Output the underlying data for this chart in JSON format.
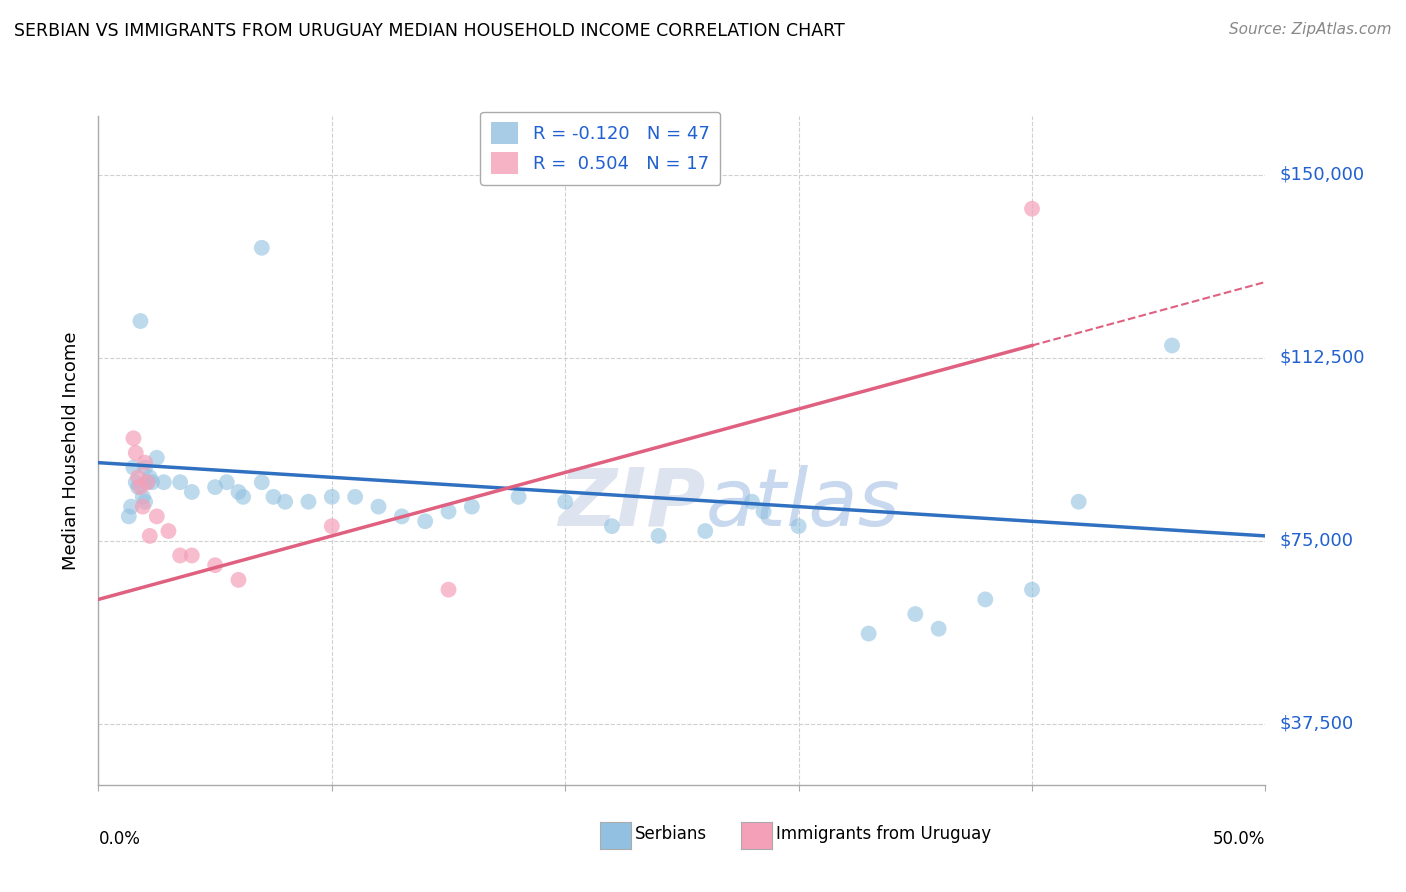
{
  "title": "SERBIAN VS IMMIGRANTS FROM URUGUAY MEDIAN HOUSEHOLD INCOME CORRELATION CHART",
  "source": "Source: ZipAtlas.com",
  "ylabel": "Median Household Income",
  "yticks": [
    37500,
    75000,
    112500,
    150000
  ],
  "ytick_labels": [
    "$37,500",
    "$75,000",
    "$112,500",
    "$150,000"
  ],
  "xlim": [
    0.0,
    50.0
  ],
  "ylim": [
    25000,
    162000
  ],
  "watermark_part1": "ZIP",
  "watermark_part2": "atlas",
  "blue_color": "#92c0e0",
  "pink_color": "#f4a0b8",
  "blue_scatter_x": [
    2.1,
    2.8,
    2.5,
    2.0,
    1.8,
    1.5,
    1.6,
    1.7,
    1.9,
    2.0,
    1.4,
    1.3,
    2.2,
    2.3,
    3.5,
    4.0,
    5.5,
    6.0,
    6.2,
    7.0,
    7.5,
    8.0,
    9.0,
    10.0,
    11.0,
    12.0,
    13.0,
    14.0,
    16.0,
    18.0,
    20.0,
    22.0,
    24.0,
    26.0,
    30.0,
    33.0,
    42.0,
    46.0,
    7.0,
    28.0,
    28.5,
    35.0,
    36.0,
    38.0,
    40.0,
    15.0,
    5.0
  ],
  "blue_scatter_y": [
    87000,
    87000,
    92000,
    90000,
    120000,
    90000,
    87000,
    86000,
    84000,
    83000,
    82000,
    80000,
    88000,
    87000,
    87000,
    85000,
    87000,
    85000,
    84000,
    87000,
    84000,
    83000,
    83000,
    84000,
    84000,
    82000,
    80000,
    79000,
    82000,
    84000,
    83000,
    78000,
    76000,
    77000,
    78000,
    56000,
    83000,
    115000,
    135000,
    83000,
    81000,
    60000,
    57000,
    63000,
    65000,
    81000,
    86000
  ],
  "pink_scatter_x": [
    1.5,
    1.6,
    1.7,
    1.8,
    1.9,
    2.0,
    2.1,
    2.2,
    2.5,
    3.0,
    3.5,
    4.0,
    5.0,
    6.0,
    10.0,
    40.0,
    15.0
  ],
  "pink_scatter_y": [
    96000,
    93000,
    88000,
    86000,
    82000,
    91000,
    87000,
    76000,
    80000,
    77000,
    72000,
    72000,
    70000,
    67000,
    78000,
    143000,
    65000
  ],
  "blue_trend_x0": 0.0,
  "blue_trend_y0": 91000,
  "blue_trend_x1": 50.0,
  "blue_trend_y1": 76000,
  "pink_trend_x0": 0.0,
  "pink_trend_y0": 63000,
  "pink_trend_x1": 50.0,
  "pink_trend_y1": 128000,
  "pink_solid_end_x": 40.0,
  "legend_blue_label": "R = -0.120   N = 47",
  "legend_pink_label": "R =  0.504   N = 17",
  "bottom_label1": "Serbians",
  "bottom_label2": "Immigrants from Uruguay"
}
